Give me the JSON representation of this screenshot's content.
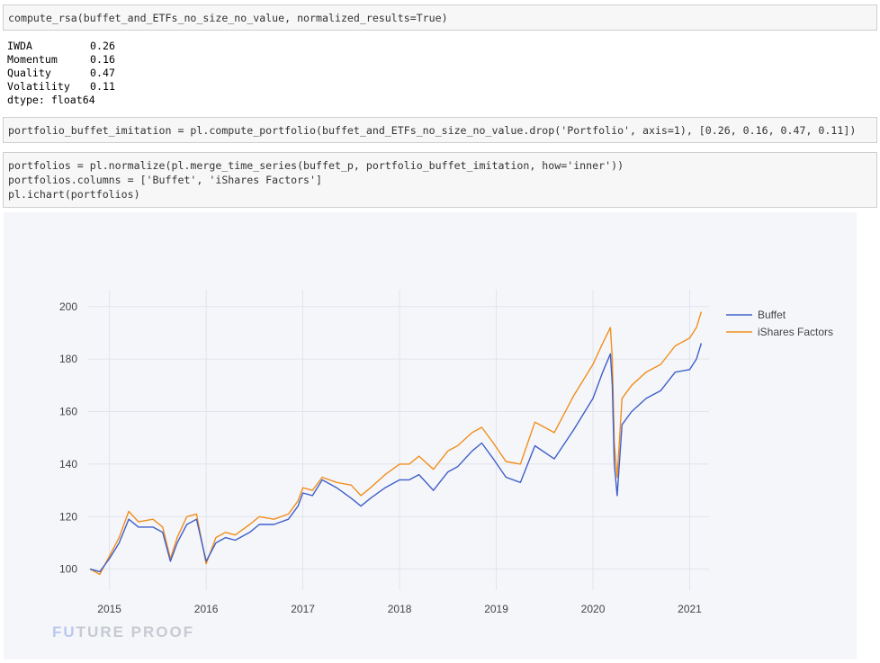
{
  "cells": [
    {
      "code": "compute_rsa(buffet_and_ETFs_no_size_no_value, normalized_results=True)"
    },
    {
      "code": "portfolio_buffet_imitation = pl.compute_portfolio(buffet_and_ETFs_no_size_no_value.drop('Portfolio', axis=1), [0.26, 0.16, 0.47, 0.11])"
    },
    {
      "code_lines": [
        "portfolios = pl.normalize(pl.merge_time_series(buffet_p, portfolio_buffet_imitation, how='inner'))",
        "portfolios.columns = ['Buffet', 'iShares Factors']",
        "pl.ichart(portfolios)"
      ]
    }
  ],
  "output": {
    "rows": [
      {
        "name": "IWDA",
        "value": "0.26"
      },
      {
        "name": "Momentum",
        "value": "0.16"
      },
      {
        "name": "Quality",
        "value": "0.47"
      },
      {
        "name": "Volatility",
        "value": "0.11"
      }
    ],
    "dtype_line": "dtype: float64"
  },
  "watermark": {
    "part1": "FU",
    "part2": "TURE PROOF"
  },
  "colors": {
    "buffet": "#3f5fc9",
    "ishares": "#f28e1c",
    "grid": "#e2e4ec"
  },
  "chart_data": {
    "type": "line",
    "title": "",
    "xlabel": "",
    "ylabel": "",
    "xlim": [
      2014.78,
      2021.2
    ],
    "ylim": [
      92,
      203
    ],
    "x_ticks": [
      2015,
      2016,
      2017,
      2018,
      2019,
      2020,
      2021
    ],
    "x_tick_labels": [
      "2015",
      "2016",
      "2017",
      "2018",
      "2019",
      "2020",
      "2021"
    ],
    "y_ticks": [
      100,
      120,
      140,
      160,
      180,
      200
    ],
    "y_tick_labels": [
      "100",
      "120",
      "140",
      "160",
      "180",
      "200"
    ],
    "grid": true,
    "legend_position": "top-right",
    "x": [
      2014.8,
      2014.9,
      2015.0,
      2015.1,
      2015.2,
      2015.3,
      2015.45,
      2015.55,
      2015.63,
      2015.7,
      2015.8,
      2015.9,
      2016.0,
      2016.1,
      2016.2,
      2016.3,
      2016.45,
      2016.55,
      2016.7,
      2016.85,
      2016.95,
      2017.0,
      2017.1,
      2017.2,
      2017.35,
      2017.5,
      2017.6,
      2017.7,
      2017.85,
      2018.0,
      2018.1,
      2018.2,
      2018.35,
      2018.5,
      2018.6,
      2018.75,
      2018.85,
      2018.97,
      2019.1,
      2019.25,
      2019.4,
      2019.6,
      2019.8,
      2020.0,
      2020.1,
      2020.18,
      2020.2,
      2020.22,
      2020.25,
      2020.3,
      2020.4,
      2020.55,
      2020.7,
      2020.85,
      2021.0,
      2021.07,
      2021.12
    ],
    "series": [
      {
        "name": "Buffet",
        "values": [
          100,
          99,
          104,
          110,
          119,
          116,
          116,
          114,
          103,
          110,
          117,
          119,
          103,
          110,
          112,
          111,
          114,
          117,
          117,
          119,
          124,
          129,
          128,
          134,
          131,
          127,
          124,
          127,
          131,
          134,
          134,
          136,
          130,
          137,
          139,
          145,
          148,
          142,
          135,
          133,
          147,
          142,
          153,
          165,
          175,
          182,
          170,
          140,
          128,
          155,
          160,
          165,
          168,
          175,
          176,
          180,
          186
        ]
      },
      {
        "name": "iShares Factors",
        "values": [
          100,
          98,
          105,
          112,
          122,
          118,
          119,
          116,
          104,
          112,
          120,
          121,
          102,
          112,
          114,
          113,
          117,
          120,
          119,
          121,
          126,
          131,
          130,
          135,
          133,
          132,
          128,
          131,
          136,
          140,
          140,
          143,
          138,
          145,
          147,
          152,
          154,
          148,
          141,
          140,
          156,
          152,
          166,
          178,
          186,
          192,
          180,
          148,
          135,
          165,
          170,
          175,
          178,
          185,
          188,
          192,
          198
        ]
      }
    ]
  }
}
